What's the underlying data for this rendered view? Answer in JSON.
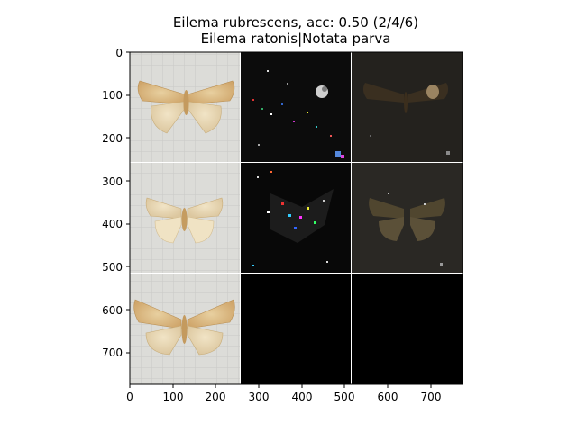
{
  "title": {
    "line1": "Eilema rubrescens, acc: 0.50 (2/4/6)",
    "line2": "Eilema ratonis|Notata parva"
  },
  "axes": {
    "x_ticks": [
      "0",
      "100",
      "200",
      "300",
      "400",
      "500",
      "600",
      "700"
    ],
    "y_ticks": [
      "0",
      "100",
      "200",
      "300",
      "400",
      "500",
      "600",
      "700"
    ],
    "x_range": [
      0,
      774
    ],
    "y_range": [
      774,
      0
    ]
  },
  "grid": {
    "rows": 3,
    "cols": 3,
    "cells": [
      [
        "moth-photo",
        "saliency-map",
        "saliency-overlay"
      ],
      [
        "moth-photo",
        "saliency-map",
        "saliency-overlay"
      ],
      [
        "moth-photo",
        "empty",
        "empty"
      ]
    ]
  },
  "colors": {
    "background": "#ffffff",
    "panel_dark": "#000000",
    "separator": "#ffffff"
  }
}
